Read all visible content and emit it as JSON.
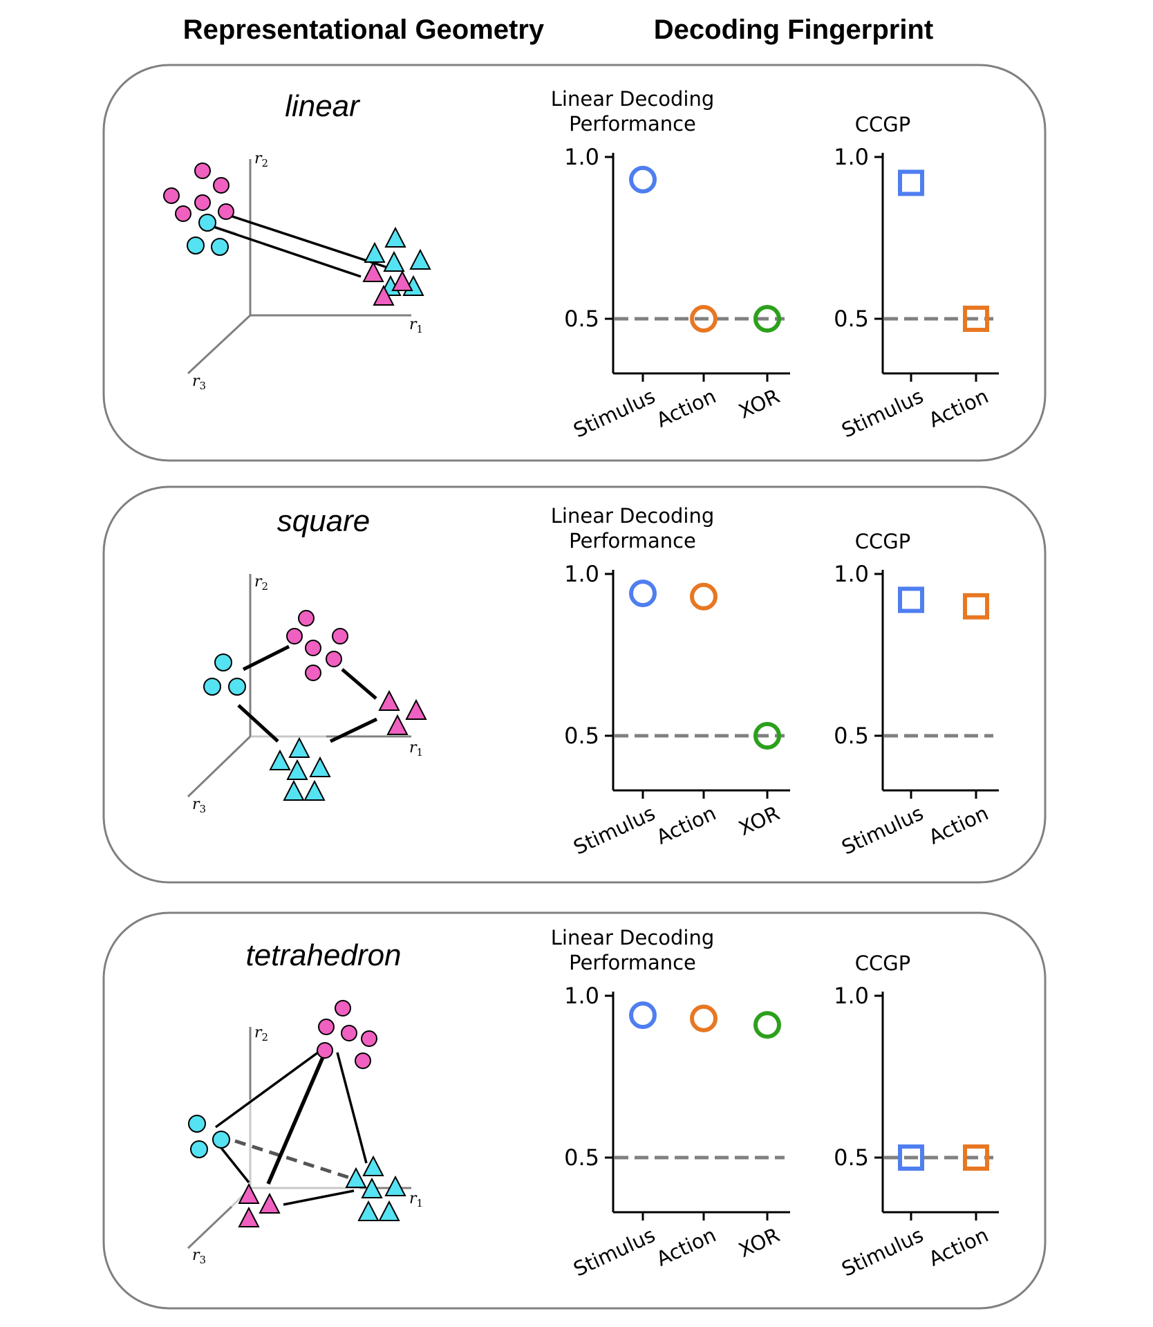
{
  "headers": {
    "left": "Representational Geometry",
    "right": "Decoding Fingerprint"
  },
  "colors": {
    "stimulus": "#4f7ef0",
    "action": "#e87722",
    "xor": "#2ca01c",
    "magenta": "#f060c0",
    "cyan": "#55e2f2",
    "axis": "#808080",
    "panel_border": "#808080"
  },
  "axis_labels": {
    "r1": "r",
    "r1_sub": "1",
    "r2": "r",
    "r2_sub": "2",
    "r3": "r",
    "r3_sub": "3"
  },
  "panels": [
    {
      "title": "linear",
      "decoding": {
        "title_line1": "Linear Decoding",
        "title_line2": "Performance"
      },
      "ccgp": {
        "title": "CCGP"
      }
    },
    {
      "title": "square",
      "decoding": {
        "title_line1": "Linear Decoding",
        "title_line2": "Performance"
      },
      "ccgp": {
        "title": "CCGP"
      }
    },
    {
      "title": "tetrahedron",
      "decoding": {
        "title_line1": "Linear Decoding",
        "title_line2": "Performance"
      },
      "ccgp": {
        "title": "CCGP"
      }
    }
  ],
  "chart_data": [
    {
      "type": "scatter",
      "panel": "linear",
      "title": "Linear Decoding Performance",
      "categories": [
        "Stimulus",
        "Action",
        "XOR"
      ],
      "values": [
        0.93,
        0.5,
        0.5
      ],
      "marker": "circle",
      "colors": [
        "#4f7ef0",
        "#e87722",
        "#2ca01c"
      ],
      "yticks": [
        0.5,
        1.0
      ],
      "ylim": [
        0.33,
        1.0
      ],
      "chance_line": 0.5
    },
    {
      "type": "scatter",
      "panel": "linear",
      "title": "CCGP",
      "categories": [
        "Stimulus",
        "Action"
      ],
      "values": [
        0.92,
        0.5
      ],
      "marker": "square",
      "colors": [
        "#4f7ef0",
        "#e87722"
      ],
      "yticks": [
        0.5,
        1.0
      ],
      "ylim": [
        0.33,
        1.0
      ],
      "chance_line": 0.5
    },
    {
      "type": "scatter",
      "panel": "square",
      "title": "Linear Decoding Performance",
      "categories": [
        "Stimulus",
        "Action",
        "XOR"
      ],
      "values": [
        0.94,
        0.93,
        0.5
      ],
      "marker": "circle",
      "colors": [
        "#4f7ef0",
        "#e87722",
        "#2ca01c"
      ],
      "yticks": [
        0.5,
        1.0
      ],
      "ylim": [
        0.33,
        1.0
      ],
      "chance_line": 0.5
    },
    {
      "type": "scatter",
      "panel": "square",
      "title": "CCGP",
      "categories": [
        "Stimulus",
        "Action"
      ],
      "values": [
        0.92,
        0.9
      ],
      "marker": "square",
      "colors": [
        "#4f7ef0",
        "#e87722"
      ],
      "yticks": [
        0.5,
        1.0
      ],
      "ylim": [
        0.33,
        1.0
      ],
      "chance_line": 0.5
    },
    {
      "type": "scatter",
      "panel": "tetrahedron",
      "title": "Linear Decoding Performance",
      "categories": [
        "Stimulus",
        "Action",
        "XOR"
      ],
      "values": [
        0.94,
        0.93,
        0.91
      ],
      "marker": "circle",
      "colors": [
        "#4f7ef0",
        "#e87722",
        "#2ca01c"
      ],
      "yticks": [
        0.5,
        1.0
      ],
      "ylim": [
        0.33,
        1.0
      ],
      "chance_line": 0.5
    },
    {
      "type": "scatter",
      "panel": "tetrahedron",
      "title": "CCGP",
      "categories": [
        "Stimulus",
        "Action"
      ],
      "values": [
        0.5,
        0.5
      ],
      "marker": "square",
      "colors": [
        "#4f7ef0",
        "#e87722"
      ],
      "yticks": [
        0.5,
        1.0
      ],
      "ylim": [
        0.33,
        1.0
      ],
      "chance_line": 0.5
    }
  ]
}
